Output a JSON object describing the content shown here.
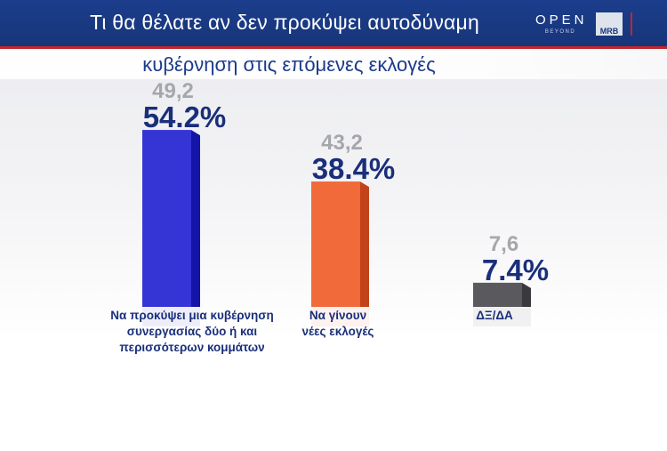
{
  "header": {
    "title_line1": "Τι θα θέλατε αν δεν προκύψει αυτοδύναμη",
    "title_line2": "κυβέρνηση στις επόμενες  εκλογές",
    "logo_open": "OPEN",
    "logo_open_sub": "BEYOND",
    "logo_mrb": "MRB"
  },
  "chart_data": {
    "type": "bar",
    "title": "Τι θα θέλατε αν δεν προκύψει αυτοδύναμη κυβέρνηση στις επόμενες  εκλογές",
    "categories": [
      [
        "Να προκύψει μια κυβέρνηση",
        "συνεργασίας δύο ή και",
        "περισσότερων κομμάτων"
      ],
      [
        "Να γίνουν",
        "νέες εκλογές"
      ],
      [
        "ΔΞ/ΔΑ"
      ]
    ],
    "series": [
      {
        "values": [
          54.2,
          38.4,
          7.4
        ],
        "labels": [
          "54.2%",
          "38.4%",
          "7.4%"
        ]
      },
      {
        "values": [
          49.2,
          43.2,
          7.6
        ],
        "labels": [
          "49,2",
          "43,2",
          "7,6"
        ]
      }
    ],
    "colors": [
      "#3535d6",
      "#f06a3a",
      "#5a5a5e"
    ],
    "side_colors": [
      "#1414a8",
      "#c4421a",
      "#3a3a3e"
    ]
  }
}
